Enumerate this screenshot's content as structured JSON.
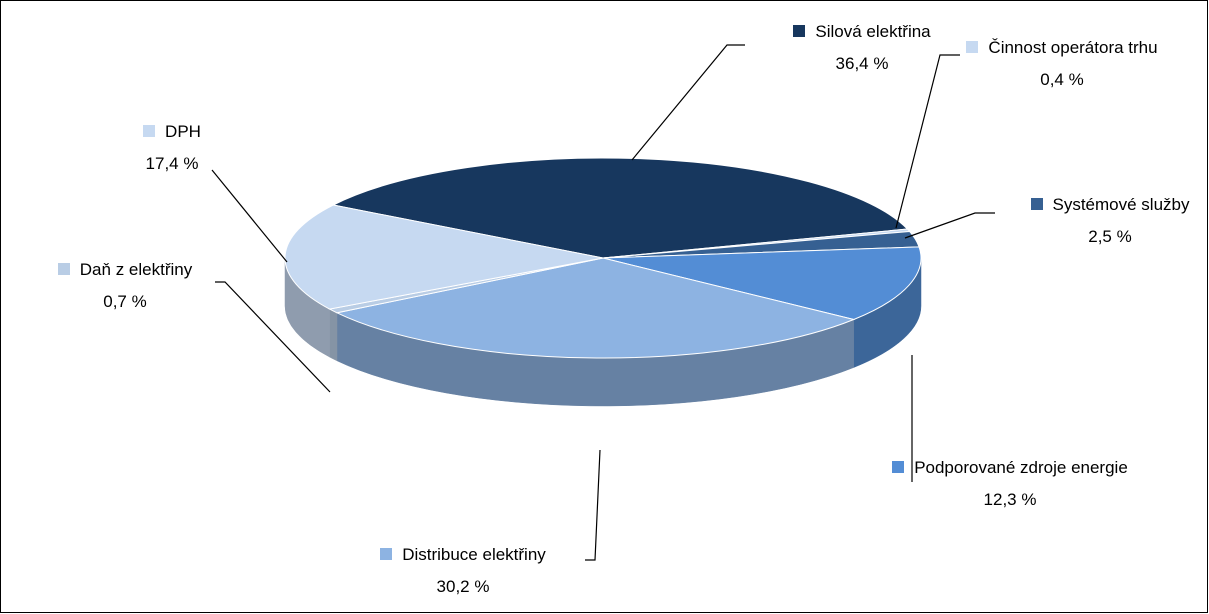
{
  "chart_data": {
    "type": "pie",
    "categories": [
      "Silová elektřina",
      "Činnost operátora trhu",
      "Systémové služby",
      "Podporované zdroje energie",
      "Distribuce elektřiny",
      "Daň z elektřiny",
      "DPH"
    ],
    "values": [
      36.4,
      0.4,
      2.5,
      12.3,
      30.2,
      0.7,
      17.4
    ],
    "value_labels": [
      "36,4 %",
      "0,4 %",
      "2,5 %",
      "12,3 %",
      "30,2 %",
      "0,7 %",
      "17,4 %"
    ],
    "colors": [
      "#17375e",
      "#c6d9f1",
      "#366092",
      "#538dd5",
      "#8db3e2",
      "#b9cde5",
      "#c6d9f1"
    ]
  }
}
